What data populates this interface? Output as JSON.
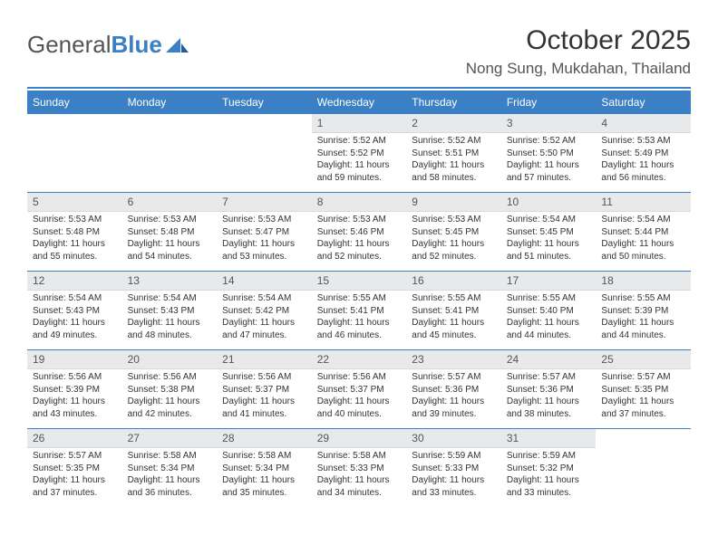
{
  "brand": {
    "name1": "General",
    "name2": "Blue"
  },
  "title": "October 2025",
  "location": "Nong Sung, Mukdahan, Thailand",
  "colors": {
    "accent": "#3b7fc4",
    "daynum_bg": "#e7e9eb",
    "text": "#333333",
    "muted": "#555555",
    "bg": "#ffffff"
  },
  "typography": {
    "title_fontsize": 30,
    "location_fontsize": 17,
    "dow_fontsize": 12,
    "daynum_fontsize": 12,
    "body_fontsize": 10
  },
  "days_of_week": [
    "Sunday",
    "Monday",
    "Tuesday",
    "Wednesday",
    "Thursday",
    "Friday",
    "Saturday"
  ],
  "weeks": [
    [
      null,
      null,
      null,
      {
        "n": "1",
        "sr": "5:52 AM",
        "ss": "5:52 PM",
        "dl": "11 hours and 59 minutes."
      },
      {
        "n": "2",
        "sr": "5:52 AM",
        "ss": "5:51 PM",
        "dl": "11 hours and 58 minutes."
      },
      {
        "n": "3",
        "sr": "5:52 AM",
        "ss": "5:50 PM",
        "dl": "11 hours and 57 minutes."
      },
      {
        "n": "4",
        "sr": "5:53 AM",
        "ss": "5:49 PM",
        "dl": "11 hours and 56 minutes."
      }
    ],
    [
      {
        "n": "5",
        "sr": "5:53 AM",
        "ss": "5:48 PM",
        "dl": "11 hours and 55 minutes."
      },
      {
        "n": "6",
        "sr": "5:53 AM",
        "ss": "5:48 PM",
        "dl": "11 hours and 54 minutes."
      },
      {
        "n": "7",
        "sr": "5:53 AM",
        "ss": "5:47 PM",
        "dl": "11 hours and 53 minutes."
      },
      {
        "n": "8",
        "sr": "5:53 AM",
        "ss": "5:46 PM",
        "dl": "11 hours and 52 minutes."
      },
      {
        "n": "9",
        "sr": "5:53 AM",
        "ss": "5:45 PM",
        "dl": "11 hours and 52 minutes."
      },
      {
        "n": "10",
        "sr": "5:54 AM",
        "ss": "5:45 PM",
        "dl": "11 hours and 51 minutes."
      },
      {
        "n": "11",
        "sr": "5:54 AM",
        "ss": "5:44 PM",
        "dl": "11 hours and 50 minutes."
      }
    ],
    [
      {
        "n": "12",
        "sr": "5:54 AM",
        "ss": "5:43 PM",
        "dl": "11 hours and 49 minutes."
      },
      {
        "n": "13",
        "sr": "5:54 AM",
        "ss": "5:43 PM",
        "dl": "11 hours and 48 minutes."
      },
      {
        "n": "14",
        "sr": "5:54 AM",
        "ss": "5:42 PM",
        "dl": "11 hours and 47 minutes."
      },
      {
        "n": "15",
        "sr": "5:55 AM",
        "ss": "5:41 PM",
        "dl": "11 hours and 46 minutes."
      },
      {
        "n": "16",
        "sr": "5:55 AM",
        "ss": "5:41 PM",
        "dl": "11 hours and 45 minutes."
      },
      {
        "n": "17",
        "sr": "5:55 AM",
        "ss": "5:40 PM",
        "dl": "11 hours and 44 minutes."
      },
      {
        "n": "18",
        "sr": "5:55 AM",
        "ss": "5:39 PM",
        "dl": "11 hours and 44 minutes."
      }
    ],
    [
      {
        "n": "19",
        "sr": "5:56 AM",
        "ss": "5:39 PM",
        "dl": "11 hours and 43 minutes."
      },
      {
        "n": "20",
        "sr": "5:56 AM",
        "ss": "5:38 PM",
        "dl": "11 hours and 42 minutes."
      },
      {
        "n": "21",
        "sr": "5:56 AM",
        "ss": "5:37 PM",
        "dl": "11 hours and 41 minutes."
      },
      {
        "n": "22",
        "sr": "5:56 AM",
        "ss": "5:37 PM",
        "dl": "11 hours and 40 minutes."
      },
      {
        "n": "23",
        "sr": "5:57 AM",
        "ss": "5:36 PM",
        "dl": "11 hours and 39 minutes."
      },
      {
        "n": "24",
        "sr": "5:57 AM",
        "ss": "5:36 PM",
        "dl": "11 hours and 38 minutes."
      },
      {
        "n": "25",
        "sr": "5:57 AM",
        "ss": "5:35 PM",
        "dl": "11 hours and 37 minutes."
      }
    ],
    [
      {
        "n": "26",
        "sr": "5:57 AM",
        "ss": "5:35 PM",
        "dl": "11 hours and 37 minutes."
      },
      {
        "n": "27",
        "sr": "5:58 AM",
        "ss": "5:34 PM",
        "dl": "11 hours and 36 minutes."
      },
      {
        "n": "28",
        "sr": "5:58 AM",
        "ss": "5:34 PM",
        "dl": "11 hours and 35 minutes."
      },
      {
        "n": "29",
        "sr": "5:58 AM",
        "ss": "5:33 PM",
        "dl": "11 hours and 34 minutes."
      },
      {
        "n": "30",
        "sr": "5:59 AM",
        "ss": "5:33 PM",
        "dl": "11 hours and 33 minutes."
      },
      {
        "n": "31",
        "sr": "5:59 AM",
        "ss": "5:32 PM",
        "dl": "11 hours and 33 minutes."
      },
      null
    ]
  ],
  "labels": {
    "sunrise": "Sunrise:",
    "sunset": "Sunset:",
    "daylight": "Daylight:"
  }
}
